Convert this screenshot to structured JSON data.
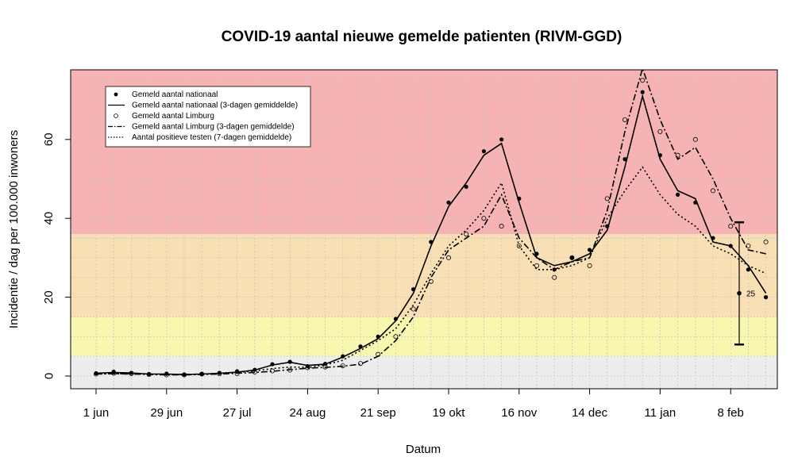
{
  "chart_data": {
    "type": "line",
    "title": "COVID-19 aantal nieuwe gemelde patienten (RIVM-GGD)",
    "xlabel": "Datum",
    "ylabel": "Incidentie / dag per 100.000 inwoners",
    "x_ticks": [
      "1 jun",
      "29 jun",
      "27 jul",
      "24 aug",
      "21 sep",
      "19 okt",
      "16 nov",
      "14 dec",
      "11 jan",
      "8 feb"
    ],
    "y_ticks": [
      "0",
      "20",
      "40",
      "60"
    ],
    "ylim": [
      0,
      78
    ],
    "grid": true,
    "legend_position": "top-left",
    "background_bands": [
      {
        "from": 0,
        "to": 5,
        "color": "#ededed"
      },
      {
        "from": 5,
        "to": 15,
        "color": "#f7f7b0"
      },
      {
        "from": 15,
        "to": 36,
        "color": "#f9dfb4"
      },
      {
        "from": 36,
        "to": 78,
        "color": "#f7b3b3"
      }
    ],
    "legend": [
      {
        "label": "Gemeld aantal nationaal",
        "symbol": "filled-dot"
      },
      {
        "label": "Gemeld aantal nationaal (3-dagen gemiddelde)",
        "symbol": "solid"
      },
      {
        "label": "Gemeld aantal Limburg",
        "symbol": "open-dot"
      },
      {
        "label": "Gemeld aantal Limburg (3-dagen gemiddelde)",
        "symbol": "dashdot"
      },
      {
        "label": "Aantal positieve testen (7-dagen gemiddelde)",
        "symbol": "dotted"
      }
    ],
    "x_days": [
      0,
      7,
      14,
      21,
      28,
      35,
      42,
      49,
      56,
      63,
      70,
      77,
      84,
      91,
      98,
      105,
      112,
      119,
      126,
      133,
      140,
      147,
      154,
      161,
      168,
      175,
      182,
      189,
      196,
      203,
      210,
      217,
      224,
      231,
      238,
      245,
      252,
      259,
      266
    ],
    "series": [
      {
        "name": "Gemeld aantal nationaal (3-dagen gemiddelde)",
        "style": "solid",
        "values": [
          0.7,
          0.9,
          0.8,
          0.5,
          0.5,
          0.4,
          0.5,
          0.7,
          1.0,
          1.5,
          2.8,
          3.5,
          2.7,
          3.0,
          4.8,
          7.0,
          9.5,
          14.0,
          21.0,
          33.0,
          43.0,
          49.0,
          56.0,
          59.0,
          44.0,
          30.0,
          28.0,
          29.0,
          31.0,
          37.0,
          53.0,
          71.0,
          55.0,
          47.0,
          45.0,
          34.0,
          33.0,
          28.0,
          21.0
        ]
      },
      {
        "name": "Gemeld aantal Limburg (3-dagen gemiddelde)",
        "style": "dashdot",
        "values": [
          0.5,
          0.6,
          0.5,
          0.4,
          0.3,
          0.3,
          0.4,
          0.5,
          0.7,
          0.9,
          1.2,
          1.6,
          2.0,
          2.2,
          2.5,
          3.0,
          5.0,
          9.0,
          15.0,
          25.0,
          32.0,
          35.0,
          38.0,
          46.0,
          35.0,
          30.0,
          27.0,
          29.0,
          30.0,
          42.0,
          62.0,
          78.0,
          65.0,
          55.0,
          58.0,
          50.0,
          40.0,
          32.0,
          31.0
        ]
      },
      {
        "name": "Aantal positieve testen (7-dagen gemiddelde)",
        "style": "dotted",
        "values": [
          0.5,
          0.6,
          0.6,
          0.5,
          0.4,
          0.4,
          0.5,
          0.6,
          0.9,
          1.3,
          1.9,
          2.3,
          2.2,
          2.8,
          4.0,
          6.5,
          9.0,
          12.0,
          18.0,
          26.0,
          33.0,
          37.0,
          42.0,
          49.0,
          33.0,
          27.0,
          27.0,
          28.0,
          30.0,
          40.0,
          47.0,
          53.0,
          46.0,
          41.0,
          38.0,
          33.0,
          31.0,
          28.0,
          26.0
        ]
      },
      {
        "name": "Gemeld aantal nationaal",
        "style": "filled-dot",
        "values": [
          0.7,
          1.1,
          0.8,
          0.5,
          0.6,
          0.4,
          0.5,
          0.8,
          1.2,
          1.6,
          3.0,
          3.6,
          2.5,
          3.1,
          5.0,
          7.5,
          10.0,
          14.5,
          22.0,
          34.0,
          44.0,
          48.0,
          57.0,
          60.0,
          45.0,
          31.0,
          27.0,
          30.0,
          32.0,
          38.0,
          55.0,
          72.0,
          56.0,
          46.0,
          44.0,
          35.0,
          33.0,
          27.0,
          20.0
        ]
      },
      {
        "name": "Gemeld aantal Limburg",
        "style": "open-dot",
        "values": [
          0.5,
          0.7,
          0.6,
          0.4,
          0.3,
          0.3,
          0.5,
          0.6,
          0.6,
          1.0,
          1.3,
          1.5,
          2.1,
          2.3,
          2.6,
          3.2,
          5.5,
          10.0,
          17.0,
          24.0,
          30.0,
          36.0,
          40.0,
          38.0,
          33.0,
          28.0,
          25.0,
          30.0,
          28.0,
          45.0,
          65.0,
          75.0,
          62.0,
          56.0,
          60.0,
          47.0,
          38.0,
          33.0,
          34.0
        ]
      }
    ],
    "error_bar": {
      "center": 21,
      "low": 8,
      "high": 39,
      "label": "25"
    }
  }
}
